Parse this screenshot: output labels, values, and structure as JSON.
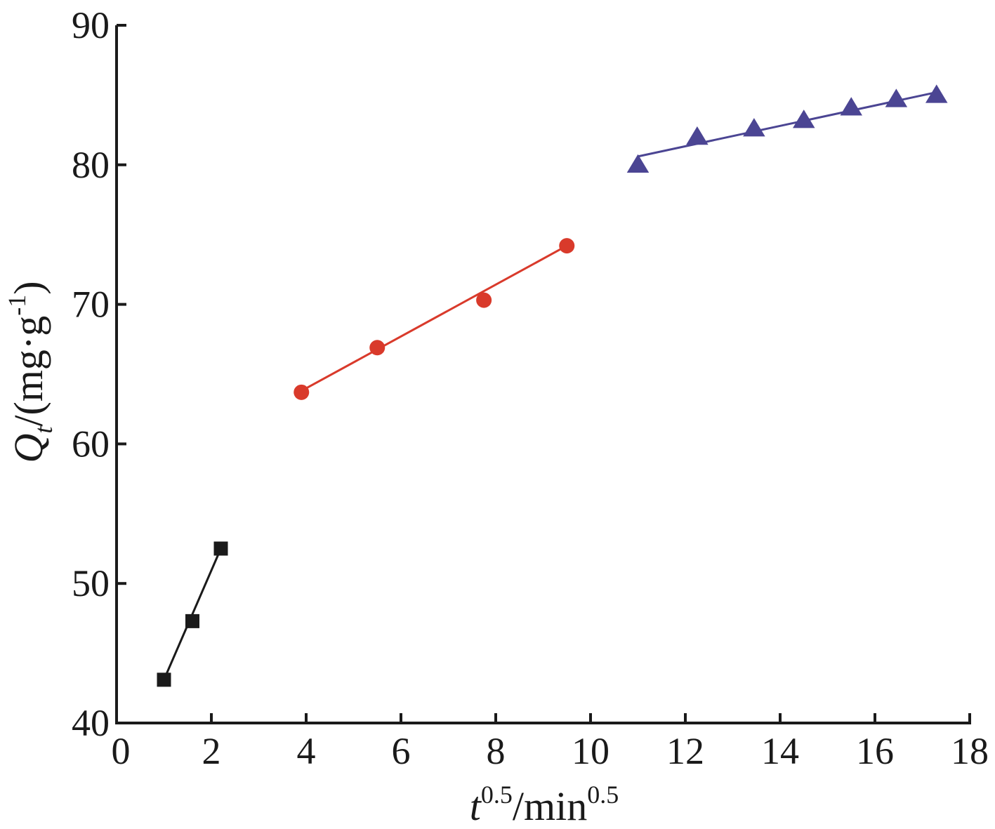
{
  "chart_data": {
    "type": "scatter",
    "xlabel": {
      "main": "t",
      "sup1": "0.5",
      "mid": "/min",
      "sup2": "0.5"
    },
    "ylabel": {
      "main": "Q",
      "sub": "t",
      "mid": "/(mg·g",
      "sup": "-1",
      "end": ")"
    },
    "xlim": [
      0,
      18
    ],
    "ylim": [
      40,
      90
    ],
    "xticks": [
      0,
      2,
      4,
      6,
      8,
      10,
      12,
      14,
      16,
      18
    ],
    "yticks": [
      40,
      50,
      60,
      70,
      80,
      90
    ],
    "xtick_labels": [
      "0",
      "2",
      "4",
      "6",
      "8",
      "10",
      "12",
      "14",
      "16",
      "18"
    ],
    "ytick_labels": [
      "40",
      "50",
      "60",
      "70",
      "80",
      "90"
    ],
    "grid": false,
    "series": [
      {
        "marker": "square",
        "color": "#1a1a1a",
        "points": [
          [
            1.0,
            43.1
          ],
          [
            1.6,
            47.3
          ],
          [
            2.2,
            52.5
          ]
        ],
        "fit_line": [
          [
            1.0,
            43.1
          ],
          [
            2.2,
            52.5
          ]
        ]
      },
      {
        "marker": "circle",
        "color": "#d93a2b",
        "points": [
          [
            3.9,
            63.7
          ],
          [
            5.5,
            66.9
          ],
          [
            7.75,
            70.3
          ],
          [
            9.5,
            74.2
          ]
        ],
        "fit_line": [
          [
            3.9,
            63.8
          ],
          [
            9.5,
            74.2
          ]
        ]
      },
      {
        "marker": "triangle",
        "color": "#4b4593",
        "points": [
          [
            11.0,
            80.0
          ],
          [
            12.25,
            82.0
          ],
          [
            13.45,
            82.6
          ],
          [
            14.5,
            83.2
          ],
          [
            15.5,
            84.1
          ],
          [
            16.45,
            84.7
          ],
          [
            17.3,
            85.0
          ]
        ],
        "fit_line": [
          [
            11.0,
            80.6
          ],
          [
            17.3,
            85.2
          ]
        ]
      }
    ]
  }
}
